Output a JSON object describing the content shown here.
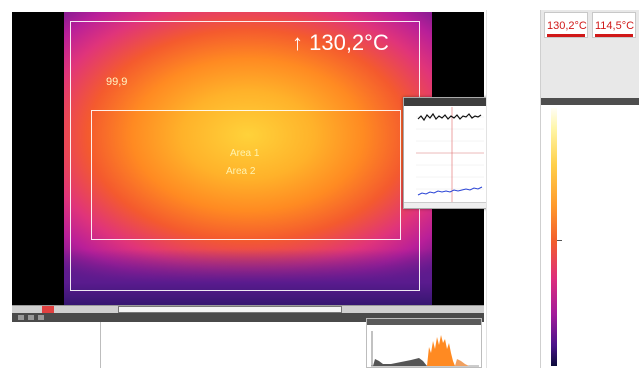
{
  "viewer": {
    "max_temperature": "↑ 130,2°C",
    "point_value": "99,9",
    "area_labels": [
      "Area 1",
      "Area 2"
    ]
  },
  "measurements": [
    {
      "value": "130,2°C",
      "color": "#d01818"
    },
    {
      "value": "114,5°C",
      "color": "#d01818"
    }
  ],
  "icons": [
    "arrow-up-icon",
    "play-icon",
    "stop-icon"
  ],
  "colors": {
    "thermal_hot": "#ffd23a",
    "thermal_cold": "#5b1a8b",
    "alarm_red": "#d01818",
    "line_black_series": "#111111",
    "line_blue_series": "#2a44d6"
  },
  "timeline": {
    "position_fraction": 0.45
  }
}
